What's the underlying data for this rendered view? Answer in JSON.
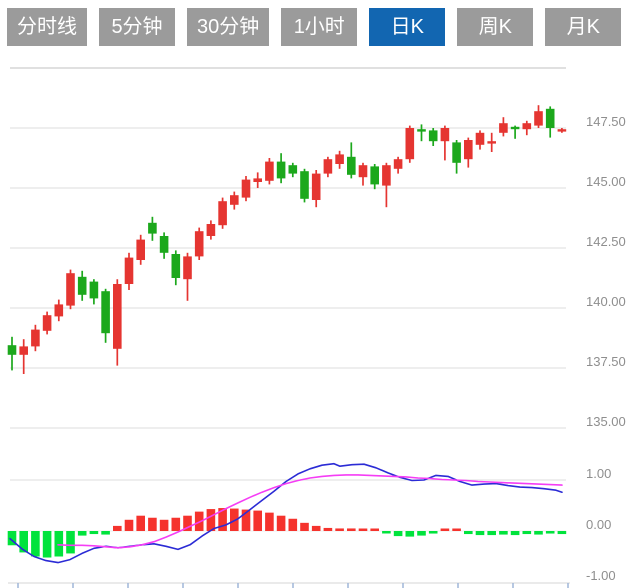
{
  "toolbar": {
    "tabs": [
      {
        "label": "分时线",
        "active": false
      },
      {
        "label": "5分钟",
        "active": false
      },
      {
        "label": "30分钟",
        "active": false
      },
      {
        "label": "1小时",
        "active": false
      },
      {
        "label": "日K",
        "active": true
      },
      {
        "label": "周K",
        "active": false
      },
      {
        "label": "月K",
        "active": false
      }
    ]
  },
  "colors": {
    "tab_bg": "#9b9b9b",
    "tab_active": "#1266b1",
    "tab_text": "#ffffff",
    "candle_up": "#e53531",
    "candle_down": "#1ca81c",
    "hist_up": "#f5332d",
    "hist_down": "#00e33c",
    "dif_line": "#2b2bd5",
    "dea_line": "#f53df5",
    "grid": "#dcdcdc",
    "axis_label": "#8e8e8e",
    "axis_line": "#d4d4d4",
    "axis_tick": "#9fb6d8"
  },
  "chart_data": [
    {
      "type": "candlestick",
      "timeframe_selected": "日K",
      "y_axis": {
        "position": "right",
        "tick_labels": [
          "147.50",
          "145.00",
          "142.50",
          "140.00",
          "137.50",
          "135.00"
        ],
        "tick_prices": [
          147.5,
          145.0,
          142.5,
          140.0,
          137.5,
          135.0
        ],
        "top_price": 150.0,
        "step": 2.5,
        "range": [
          135.0,
          150.0
        ],
        "grid": true
      },
      "x_axis": {
        "labels_visible": false
      },
      "candles_ohlc": [
        [
          138.45,
          138.8,
          137.4,
          138.05
        ],
        [
          138.05,
          138.7,
          137.25,
          138.4
        ],
        [
          138.4,
          139.3,
          138.2,
          139.1
        ],
        [
          139.05,
          139.85,
          138.9,
          139.7
        ],
        [
          139.65,
          140.35,
          139.45,
          140.15
        ],
        [
          140.1,
          141.6,
          139.95,
          141.45
        ],
        [
          141.3,
          141.55,
          140.3,
          140.55
        ],
        [
          141.1,
          141.2,
          140.15,
          140.4
        ],
        [
          140.7,
          140.8,
          138.55,
          138.95
        ],
        [
          138.3,
          141.2,
          137.6,
          141.0
        ],
        [
          141.0,
          142.3,
          140.75,
          142.1
        ],
        [
          142.0,
          143.05,
          141.8,
          142.85
        ],
        [
          143.55,
          143.8,
          142.8,
          143.1
        ],
        [
          143.0,
          143.15,
          142.05,
          142.3
        ],
        [
          142.25,
          142.4,
          140.95,
          141.25
        ],
        [
          141.2,
          142.3,
          140.3,
          142.15
        ],
        [
          142.15,
          143.35,
          142.0,
          143.2
        ],
        [
          143.0,
          143.65,
          142.85,
          143.5
        ],
        [
          143.45,
          144.6,
          143.3,
          144.45
        ],
        [
          144.3,
          144.85,
          144.1,
          144.7
        ],
        [
          144.6,
          145.5,
          144.45,
          145.35
        ],
        [
          145.25,
          145.65,
          145.0,
          145.4
        ],
        [
          145.3,
          146.25,
          145.15,
          146.1
        ],
        [
          146.1,
          146.45,
          145.2,
          145.4
        ],
        [
          145.95,
          146.05,
          145.45,
          145.6
        ],
        [
          145.7,
          145.8,
          144.4,
          144.55
        ],
        [
          144.5,
          145.75,
          144.2,
          145.6
        ],
        [
          145.6,
          146.3,
          145.45,
          146.2
        ],
        [
          146.0,
          146.55,
          145.8,
          146.4
        ],
        [
          146.3,
          146.9,
          145.4,
          145.55
        ],
        [
          145.45,
          146.05,
          145.1,
          145.95
        ],
        [
          145.9,
          146.0,
          144.95,
          145.15
        ],
        [
          145.1,
          146.05,
          144.2,
          145.95
        ],
        [
          145.8,
          146.3,
          145.6,
          146.2
        ],
        [
          146.2,
          147.6,
          146.05,
          147.5
        ],
        [
          147.45,
          147.65,
          146.95,
          147.35
        ],
        [
          147.4,
          147.5,
          146.75,
          146.95
        ],
        [
          146.95,
          147.6,
          146.15,
          147.5
        ],
        [
          146.9,
          147.0,
          145.6,
          146.05
        ],
        [
          146.2,
          147.1,
          145.85,
          147.0
        ],
        [
          146.8,
          147.4,
          146.6,
          147.3
        ],
        [
          146.85,
          147.3,
          146.5,
          146.95
        ],
        [
          147.3,
          147.95,
          147.15,
          147.7
        ],
        [
          147.55,
          147.6,
          147.05,
          147.45
        ],
        [
          147.45,
          147.8,
          147.2,
          147.7
        ],
        [
          147.6,
          148.45,
          147.5,
          148.2
        ],
        [
          148.3,
          148.4,
          147.1,
          147.5
        ],
        [
          147.35,
          147.5,
          147.3,
          147.45
        ]
      ]
    },
    {
      "type": "macd",
      "y_axis": {
        "position": "right",
        "tick_labels": [
          "1.00",
          "0.00",
          "-1.00"
        ],
        "tick_values": [
          1.0,
          0.0,
          -1.0
        ],
        "grid_value": 1.0
      },
      "histogram": [
        -0.28,
        -0.42,
        -0.5,
        -0.52,
        -0.5,
        -0.44,
        -0.09,
        -0.06,
        -0.07,
        0.1,
        0.22,
        0.3,
        0.26,
        0.22,
        0.26,
        0.3,
        0.38,
        0.43,
        0.45,
        0.44,
        0.42,
        0.4,
        0.36,
        0.3,
        0.24,
        0.16,
        0.1,
        0.06,
        0.05,
        0.05,
        0.04,
        0.02,
        -0.04,
        -0.1,
        -0.11,
        -0.09,
        -0.05,
        0.03,
        0.02,
        -0.06,
        -0.08,
        -0.08,
        -0.07,
        -0.08,
        -0.06,
        -0.07,
        -0.05,
        -0.06
      ],
      "series": [
        {
          "name": "dif",
          "color_key": "dif_line",
          "points": [
            [
              10,
              -0.15
            ],
            [
              22,
              -0.35
            ],
            [
              34,
              -0.5
            ],
            [
              46,
              -0.58
            ],
            [
              58,
              -0.62
            ],
            [
              70,
              -0.56
            ],
            [
              82,
              -0.44
            ],
            [
              94,
              -0.34
            ],
            [
              106,
              -0.3
            ],
            [
              118,
              -0.33
            ],
            [
              130,
              -0.3
            ],
            [
              142,
              -0.27
            ],
            [
              154,
              -0.25
            ],
            [
              166,
              -0.3
            ],
            [
              178,
              -0.36
            ],
            [
              190,
              -0.27
            ],
            [
              202,
              -0.1
            ],
            [
              214,
              0.05
            ],
            [
              226,
              0.12
            ],
            [
              238,
              0.24
            ],
            [
              250,
              0.42
            ],
            [
              262,
              0.6
            ],
            [
              274,
              0.78
            ],
            [
              286,
              0.97
            ],
            [
              298,
              1.12
            ],
            [
              310,
              1.22
            ],
            [
              322,
              1.29
            ],
            [
              334,
              1.32
            ],
            [
              340,
              1.27
            ],
            [
              352,
              1.3
            ],
            [
              364,
              1.31
            ],
            [
              376,
              1.24
            ],
            [
              388,
              1.14
            ],
            [
              400,
              1.05
            ],
            [
              412,
              0.99
            ],
            [
              424,
              1.0
            ],
            [
              436,
              1.09
            ],
            [
              448,
              1.07
            ],
            [
              460,
              0.97
            ],
            [
              472,
              0.9
            ],
            [
              484,
              0.92
            ],
            [
              496,
              0.93
            ],
            [
              508,
              0.89
            ],
            [
              520,
              0.86
            ],
            [
              532,
              0.85
            ],
            [
              544,
              0.83
            ],
            [
              556,
              0.8
            ],
            [
              562,
              0.76
            ]
          ]
        },
        {
          "name": "dea",
          "color_key": "dea_line",
          "points": [
            [
              58,
              -0.27
            ],
            [
              70,
              -0.28
            ],
            [
              82,
              -0.28
            ],
            [
              94,
              -0.29
            ],
            [
              106,
              -0.31
            ],
            [
              118,
              -0.33
            ],
            [
              130,
              -0.31
            ],
            [
              142,
              -0.27
            ],
            [
              154,
              -0.21
            ],
            [
              166,
              -0.12
            ],
            [
              178,
              -0.02
            ],
            [
              190,
              0.09
            ],
            [
              202,
              0.2
            ],
            [
              214,
              0.32
            ],
            [
              226,
              0.44
            ],
            [
              238,
              0.55
            ],
            [
              250,
              0.66
            ],
            [
              262,
              0.76
            ],
            [
              274,
              0.85
            ],
            [
              286,
              0.93
            ],
            [
              298,
              0.99
            ],
            [
              310,
              1.04
            ],
            [
              322,
              1.07
            ],
            [
              334,
              1.09
            ],
            [
              346,
              1.1
            ],
            [
              358,
              1.1
            ],
            [
              370,
              1.09
            ],
            [
              382,
              1.08
            ],
            [
              394,
              1.07
            ],
            [
              406,
              1.06
            ],
            [
              418,
              1.04
            ],
            [
              430,
              1.03
            ],
            [
              442,
              1.01
            ],
            [
              454,
              1.0
            ],
            [
              466,
              0.99
            ],
            [
              478,
              0.97
            ],
            [
              490,
              0.96
            ],
            [
              502,
              0.95
            ],
            [
              514,
              0.94
            ],
            [
              526,
              0.93
            ],
            [
              538,
              0.92
            ],
            [
              550,
              0.91
            ],
            [
              562,
              0.9
            ]
          ]
        }
      ],
      "x_axis": {
        "tick_xs": [
          18,
          73,
          128,
          183,
          238,
          293,
          348,
          403,
          458,
          513,
          568
        ]
      }
    }
  ]
}
